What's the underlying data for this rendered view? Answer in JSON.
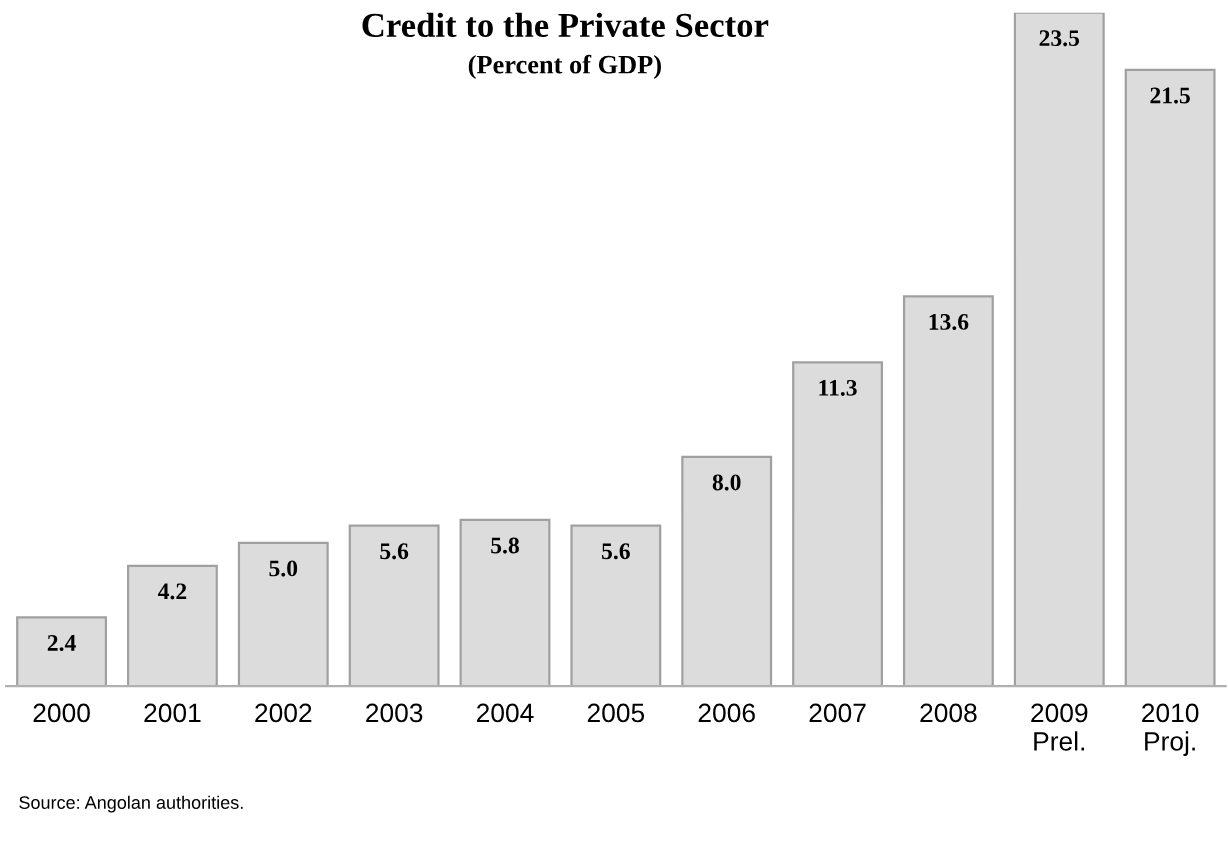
{
  "chart_data": {
    "type": "bar",
    "title": "Credit to the Private Sector",
    "subtitle": "(Percent of GDP)",
    "categories": [
      "2000",
      "2001",
      "2002",
      "2003",
      "2004",
      "2005",
      "2006",
      "2007",
      "2008",
      "2009\nPrel.",
      "2010\nProj."
    ],
    "values": [
      2.4,
      4.2,
      5.0,
      5.6,
      5.8,
      5.6,
      8.0,
      11.3,
      13.6,
      23.5,
      21.5
    ],
    "value_labels": [
      "2.4",
      "4.2",
      "5.0",
      "5.6",
      "5.8",
      "5.6",
      "8.0",
      "11.3",
      "13.6",
      "23.5",
      "21.5"
    ],
    "color": "#dcdcdc",
    "annotations": [
      "Source: Angolan authorities."
    ],
    "grid": false,
    "legend": false
  }
}
